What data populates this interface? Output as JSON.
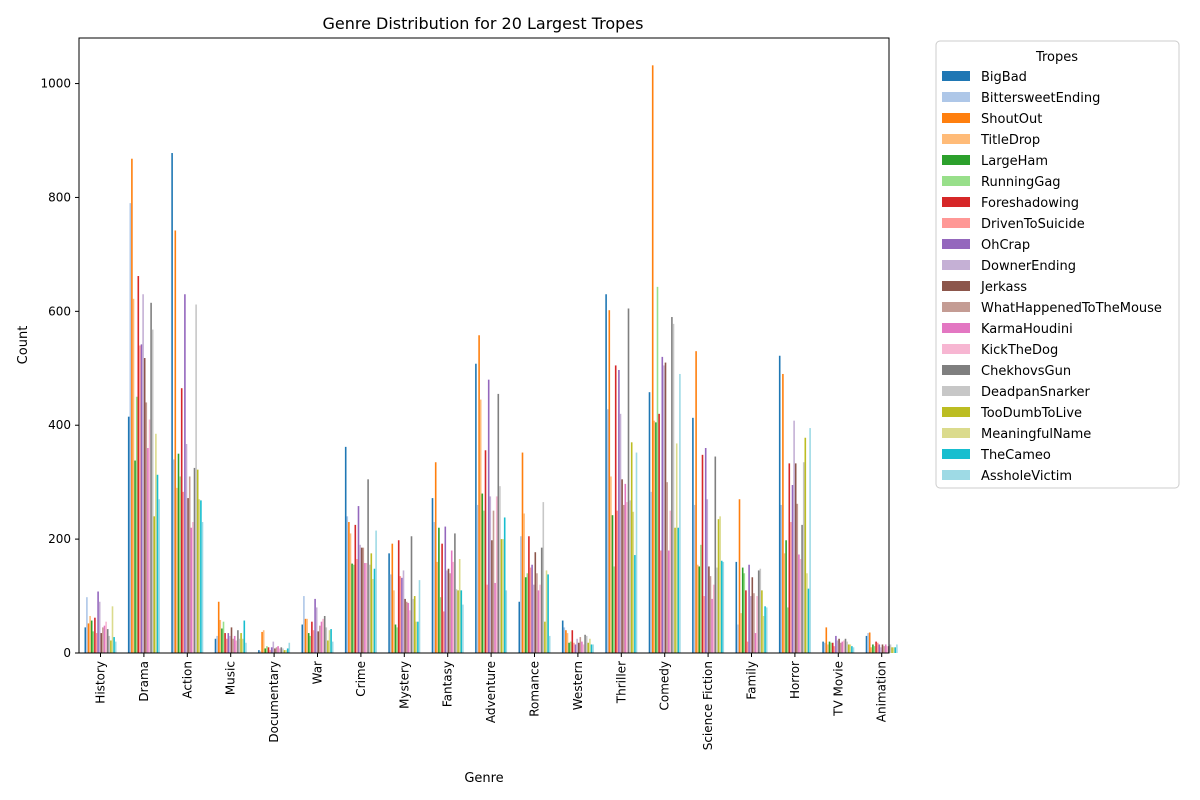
{
  "chart_data": {
    "type": "bar",
    "title": "Genre Distribution for 20 Largest Tropes",
    "xlabel": "Genre",
    "ylabel": "Count",
    "ylim": [
      0,
      1080
    ],
    "yticks": [
      0,
      200,
      400,
      600,
      800,
      1000
    ],
    "legend_title": "Tropes",
    "legend_placement": "outside-right",
    "categories": [
      "History",
      "Drama",
      "Action",
      "Music",
      "Documentary",
      "War",
      "Crime",
      "Mystery",
      "Fantasy",
      "Adventure",
      "Romance",
      "Western",
      "Thriller",
      "Comedy",
      "Science Fiction",
      "Family",
      "Horror",
      "TV Movie",
      "Animation"
    ],
    "series": [
      {
        "name": "BigBad",
        "color": "#1f77b4",
        "values": [
          45,
          415,
          878,
          25,
          5,
          50,
          362,
          175,
          272,
          508,
          90,
          57,
          630,
          458,
          413,
          160,
          522,
          20,
          30
        ]
      },
      {
        "name": "BittersweetEnding",
        "color": "#aec7e8",
        "values": [
          98,
          790,
          340,
          30,
          3,
          100,
          240,
          138,
          230,
          260,
          205,
          45,
          428,
          283,
          260,
          50,
          260,
          18,
          35
        ]
      },
      {
        "name": "ShoutOut",
        "color": "#ff7f0e",
        "values": [
          52,
          868,
          742,
          90,
          37,
          60,
          230,
          192,
          335,
          558,
          352,
          40,
          602,
          1032,
          530,
          270,
          490,
          45,
          36
        ]
      },
      {
        "name": "TitleDrop",
        "color": "#ffbb78",
        "values": [
          65,
          622,
          290,
          58,
          40,
          60,
          210,
          110,
          160,
          445,
          245,
          35,
          310,
          408,
          155,
          70,
          175,
          15,
          10
        ]
      },
      {
        "name": "LargeHam",
        "color": "#2ca02c",
        "values": [
          57,
          338,
          350,
          43,
          8,
          35,
          157,
          50,
          220,
          280,
          133,
          18,
          242,
          405,
          152,
          150,
          198,
          20,
          15
        ]
      },
      {
        "name": "RunningGag",
        "color": "#98df8a",
        "values": [
          38,
          450,
          310,
          55,
          12,
          30,
          155,
          45,
          98,
          250,
          140,
          20,
          152,
          643,
          190,
          140,
          80,
          18,
          12
        ]
      },
      {
        "name": "Foreshadowing",
        "color": "#d62728",
        "values": [
          62,
          662,
          465,
          35,
          10,
          55,
          225,
          198,
          192,
          356,
          205,
          40,
          505,
          420,
          348,
          110,
          333,
          18,
          20
        ]
      },
      {
        "name": "DrivenToSuicide",
        "color": "#ff9896",
        "values": [
          35,
          540,
          283,
          25,
          5,
          40,
          165,
          135,
          73,
          120,
          150,
          18,
          250,
          180,
          100,
          20,
          230,
          12,
          18
        ]
      },
      {
        "name": "OhCrap",
        "color": "#9467bd",
        "values": [
          108,
          542,
          630,
          35,
          10,
          95,
          258,
          132,
          222,
          480,
          155,
          15,
          497,
          520,
          360,
          155,
          295,
          30,
          15
        ]
      },
      {
        "name": "DownerEnding",
        "color": "#c5b0d5",
        "values": [
          90,
          630,
          367,
          30,
          20,
          80,
          190,
          145,
          145,
          275,
          120,
          25,
          420,
          505,
          270,
          100,
          408,
          22,
          10
        ]
      },
      {
        "name": "Jerkass",
        "color": "#8c564b",
        "values": [
          35,
          518,
          272,
          45,
          8,
          38,
          185,
          95,
          148,
          198,
          177,
          18,
          305,
          510,
          152,
          133,
          333,
          25,
          15
        ]
      },
      {
        "name": "WhatHappenedToTheMouse",
        "color": "#c49c94",
        "values": [
          45,
          440,
          310,
          25,
          10,
          48,
          185,
          90,
          140,
          250,
          140,
          28,
          260,
          300,
          135,
          105,
          262,
          18,
          12
        ]
      },
      {
        "name": "KarmaHoudini",
        "color": "#e377c2",
        "values": [
          48,
          360,
          220,
          30,
          12,
          55,
          158,
          88,
          180,
          123,
          110,
          20,
          297,
          180,
          95,
          35,
          173,
          20,
          15
        ]
      },
      {
        "name": "KickTheDog",
        "color": "#f7b6d2",
        "values": [
          55,
          410,
          230,
          22,
          8,
          60,
          158,
          75,
          160,
          275,
          120,
          15,
          265,
          250,
          120,
          100,
          165,
          22,
          12
        ]
      },
      {
        "name": "ChekhovsGun",
        "color": "#7f7f7f",
        "values": [
          42,
          615,
          325,
          40,
          10,
          65,
          305,
          205,
          210,
          455,
          185,
          32,
          605,
          590,
          345,
          145,
          225,
          25,
          12
        ]
      },
      {
        "name": "DeadpanSnarker",
        "color": "#c7c7c7",
        "values": [
          30,
          568,
          612,
          25,
          8,
          45,
          155,
          95,
          112,
          293,
          265,
          30,
          268,
          578,
          150,
          148,
          335,
          20,
          15
        ]
      },
      {
        "name": "TooDumbToLive",
        "color": "#bcbd22",
        "values": [
          22,
          240,
          322,
          35,
          5,
          22,
          175,
          100,
          110,
          200,
          55,
          18,
          370,
          220,
          235,
          110,
          378,
          15,
          10
        ]
      },
      {
        "name": "MeaningfulName",
        "color": "#dbdb8d",
        "values": [
          82,
          385,
          270,
          25,
          5,
          40,
          130,
          55,
          165,
          200,
          145,
          25,
          248,
          368,
          240,
          65,
          140,
          15,
          10
        ]
      },
      {
        "name": "TheCameo",
        "color": "#17becf",
        "values": [
          28,
          313,
          268,
          57,
          8,
          42,
          148,
          55,
          110,
          238,
          138,
          15,
          172,
          220,
          162,
          82,
          113,
          12,
          10
        ]
      },
      {
        "name": "AssholeVictim",
        "color": "#9edae5",
        "values": [
          20,
          270,
          230,
          18,
          18,
          20,
          215,
          128,
          85,
          110,
          30,
          15,
          352,
          490,
          160,
          80,
          395,
          10,
          15
        ]
      }
    ]
  }
}
